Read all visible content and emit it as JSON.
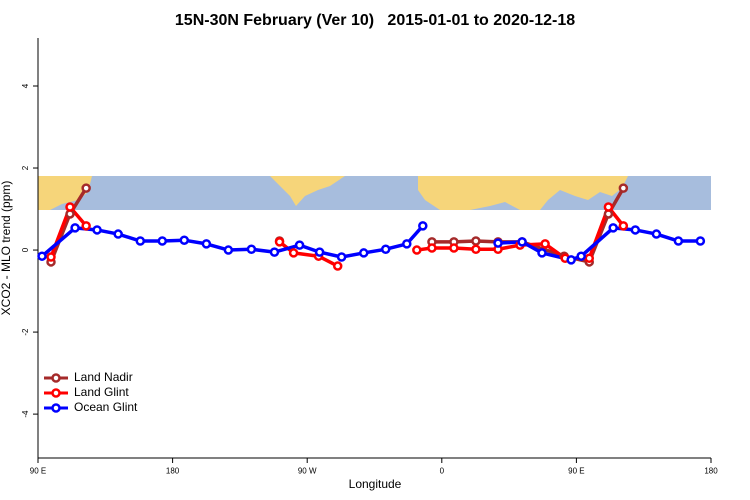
{
  "chart_data": {
    "type": "line",
    "title": "15N-30N February (Ver 10)   2015-01-01 to 2020-12-18",
    "x_label": "Longitude",
    "y_label": "XCO2 - MLO trend (ppm)",
    "xlim": [
      90,
      540
    ],
    "ylim": [
      -5.07,
      5.17
    ],
    "xticks": [
      {
        "value": 90,
        "label": "90 E"
      },
      180,
      {
        "value": 270,
        "label": "90 W"
      },
      {
        "value": 360,
        "label": "0"
      },
      {
        "value": 450,
        "label": "90 E"
      },
      {
        "value": 540,
        "label": "180"
      }
    ],
    "yticks": [
      -4,
      -2,
      0,
      2,
      4
    ],
    "legend": "bottom-left",
    "series": [
      {
        "name": "Land Nadir",
        "color": "#a52a2a",
        "x": [
          98.7,
          111.4,
          122.2,
          null,
          251.5,
          null,
          353.4,
          368.1,
          382.8,
          397.6,
          413.7,
          441.8,
          458.6,
          471.4,
          481.4
        ],
        "values": [
          -0.29,
          0.88,
          1.51,
          null,
          0.22,
          null,
          0.2,
          0.2,
          0.22,
          0.2,
          0.2,
          -0.15,
          -0.29,
          0.88,
          1.51
        ]
      },
      {
        "name": "Land Glint",
        "color": "#ff0000",
        "x": [
          98.7,
          111.4,
          122.2,
          null,
          251.5,
          260.9,
          277.6,
          290.4,
          null,
          343.3,
          353.4,
          368.1,
          382.8,
          397.6,
          412.3,
          429.1,
          442.5,
          458.6,
          471.4,
          481.4
        ],
        "values": [
          -0.17,
          1.05,
          0.59,
          null,
          0.2,
          -0.07,
          -0.15,
          -0.39,
          null,
          0.0,
          0.05,
          0.05,
          0.02,
          0.02,
          0.12,
          0.15,
          -0.2,
          -0.2,
          1.05,
          0.59
        ]
      },
      {
        "name": "Ocean Glint",
        "color": "#0000ff",
        "x": [
          92.7,
          114.8,
          129.5,
          143.6,
          158.4,
          173.1,
          187.8,
          202.6,
          217.3,
          232.7,
          248.1,
          264.9,
          278.3,
          293.0,
          307.8,
          322.5,
          336.6,
          347.3,
          null,
          397.6,
          413.7,
          427.0,
          446.5,
          453.2,
          474.6,
          489.4,
          503.5,
          518.2,
          532.9
        ],
        "values": [
          -0.15,
          0.54,
          0.49,
          0.39,
          0.22,
          0.22,
          0.24,
          0.15,
          0.0,
          0.02,
          -0.05,
          0.12,
          -0.05,
          -0.17,
          -0.07,
          0.02,
          0.15,
          0.59,
          null,
          0.17,
          0.2,
          -0.07,
          -0.24,
          -0.15,
          0.54,
          0.49,
          0.39,
          0.22,
          0.22
        ]
      }
    ]
  }
}
